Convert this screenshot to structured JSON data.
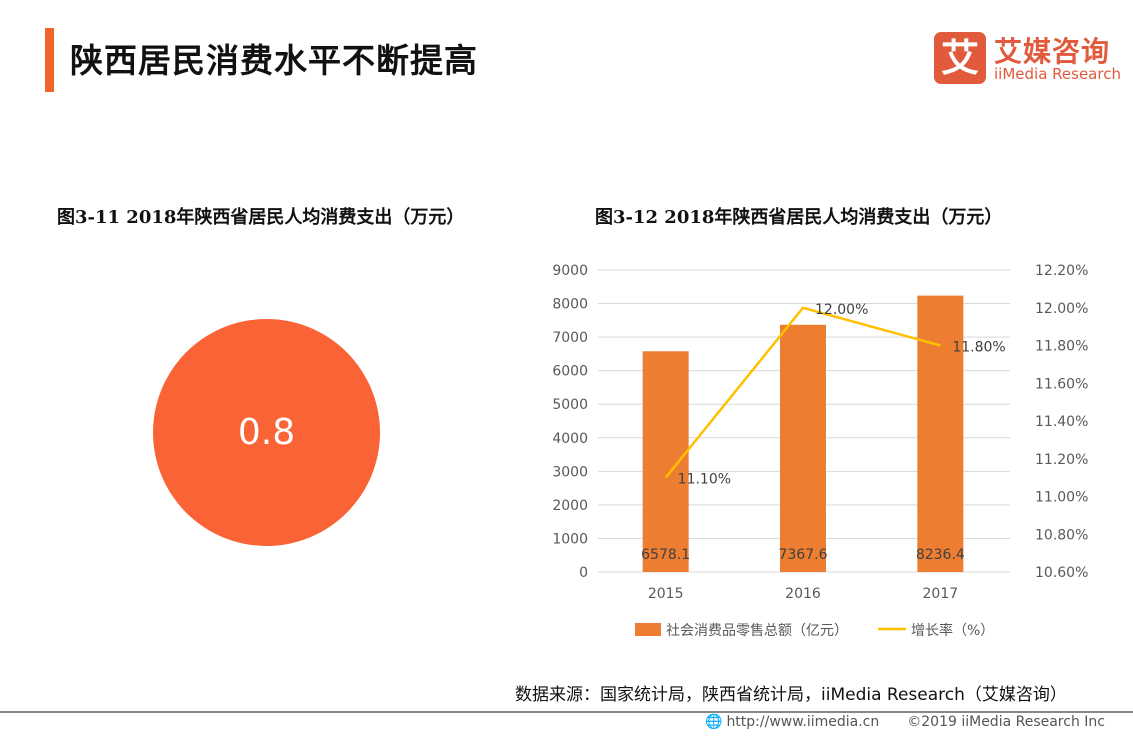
{
  "header": {
    "title": "陕西居民消费水平不断提高"
  },
  "logo": {
    "mark": "艾",
    "name_cn": "艾媒咨询",
    "name_en": "iiMedia Research"
  },
  "chart_data": [
    {
      "type": "pie",
      "title": "图3-11 2018年陕西省居民人均消费支出（万元）",
      "values": [
        0.8
      ],
      "labels": [
        "0.8"
      ],
      "colors": [
        "#F96336"
      ]
    },
    {
      "type": "bar+line",
      "title": "图3-12 2018年陕西省居民人均消费支出（万元）",
      "categories": [
        "2015",
        "2016",
        "2017"
      ],
      "series": [
        {
          "name": "社会消费品零售总额（亿元）",
          "type": "bar",
          "axis": "left",
          "values": [
            6578.1,
            7367.6,
            8236.4
          ],
          "labels": [
            "6578.1",
            "7367.6",
            "8236.4"
          ],
          "color": "#ED7D31"
        },
        {
          "name": "增长率（%）",
          "type": "line",
          "axis": "right",
          "values": [
            11.1,
            12.0,
            11.8
          ],
          "labels": [
            "11.10%",
            "12.00%",
            "11.80%"
          ],
          "color": "#FFC000"
        }
      ],
      "left_axis": {
        "ylim": [
          0,
          9000
        ],
        "ticks": [
          "0",
          "1000",
          "2000",
          "3000",
          "4000",
          "5000",
          "6000",
          "7000",
          "8000",
          "9000"
        ]
      },
      "right_axis": {
        "ylim": [
          10.6,
          12.2
        ],
        "ticks": [
          "10.60%",
          "10.80%",
          "11.00%",
          "11.20%",
          "11.40%",
          "11.60%",
          "11.80%",
          "12.00%",
          "12.20%"
        ]
      },
      "grid": true,
      "legend": "bottom"
    }
  ],
  "footer": {
    "source": "数据来源：国家统计局，陕西省统计局，iiMedia Research（艾媒咨询）",
    "url": "http://www.iimedia.cn",
    "copyright": "©2019  iiMedia Research  Inc"
  }
}
